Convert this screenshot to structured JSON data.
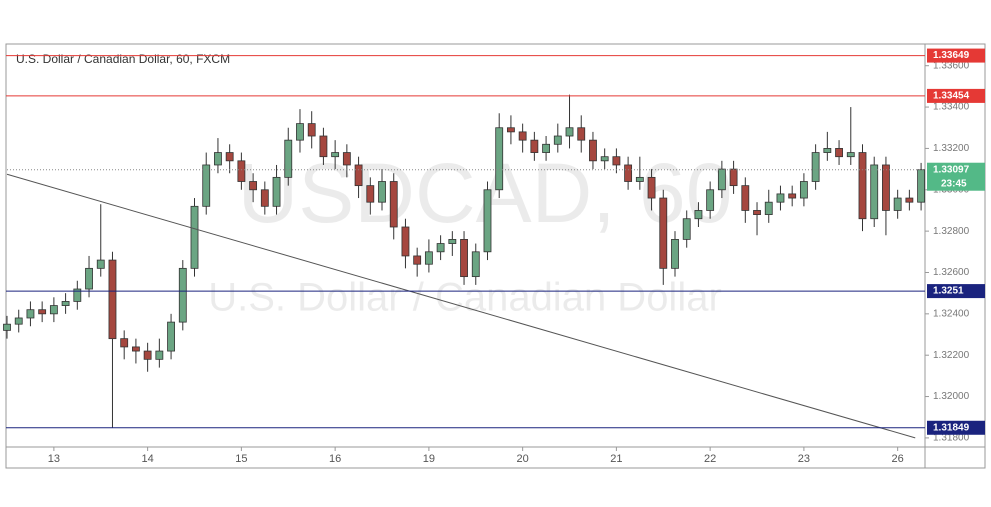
{
  "chart_data": {
    "type": "candlestick",
    "title": "U.S. Dollar / Canadian Dollar, 60, FXCM",
    "watermark": "USDCAD, 60",
    "watermark_subtitle": "U.S. Dollar / Canadian Dollar",
    "up_color": "#6ba583",
    "down_color": "#a5473f",
    "x": [
      0,
      3,
      6,
      9,
      12,
      15,
      18,
      21,
      24,
      27,
      30,
      33,
      36,
      39,
      42,
      45,
      48,
      51,
      54,
      57,
      60,
      63,
      66,
      69,
      72,
      75,
      78,
      81,
      84,
      87,
      90,
      93,
      96,
      99,
      102,
      105,
      108,
      111,
      114,
      117,
      120,
      123,
      126,
      129,
      132,
      135,
      138,
      141,
      144,
      147,
      150,
      153,
      156,
      159,
      162,
      165,
      168,
      171,
      174,
      177,
      180,
      183,
      186,
      189,
      192,
      195,
      198,
      201,
      204,
      207,
      210,
      213,
      216,
      219,
      222,
      225,
      228,
      231,
      234
    ],
    "open": [
      1.3232,
      1.3235,
      1.3238,
      1.3242,
      1.324,
      1.3244,
      1.3246,
      1.3252,
      1.3262,
      1.3266,
      1.3228,
      1.3224,
      1.3222,
      1.3218,
      1.3222,
      1.3236,
      1.3262,
      1.3292,
      1.3312,
      1.3318,
      1.3314,
      1.3304,
      1.33,
      1.3292,
      1.3306,
      1.3324,
      1.3332,
      1.3326,
      1.3316,
      1.3318,
      1.3312,
      1.3302,
      1.3294,
      1.3304,
      1.3282,
      1.3268,
      1.3264,
      1.327,
      1.3274,
      1.3276,
      1.3258,
      1.327,
      1.33,
      1.333,
      1.3328,
      1.3324,
      1.3318,
      1.3322,
      1.3326,
      1.333,
      1.3324,
      1.3314,
      1.3316,
      1.3312,
      1.3304,
      1.3306,
      1.3296,
      1.3262,
      1.3276,
      1.3286,
      1.329,
      1.33,
      1.331,
      1.3302,
      1.329,
      1.3288,
      1.3294,
      1.3298,
      1.3296,
      1.3304,
      1.3318,
      1.332,
      1.3316,
      1.3318,
      1.3286,
      1.3312,
      1.329,
      1.3296,
      1.3294
    ],
    "high": [
      1.3239,
      1.3242,
      1.3246,
      1.3246,
      1.3248,
      1.325,
      1.3256,
      1.3268,
      1.3293,
      1.327,
      1.3232,
      1.3228,
      1.3226,
      1.3228,
      1.324,
      1.3266,
      1.3296,
      1.3318,
      1.3325,
      1.3322,
      1.3318,
      1.3308,
      1.3304,
      1.3312,
      1.333,
      1.3339,
      1.3338,
      1.333,
      1.3324,
      1.3322,
      1.3316,
      1.3306,
      1.331,
      1.3308,
      1.3286,
      1.3272,
      1.3276,
      1.3278,
      1.328,
      1.328,
      1.3274,
      1.3304,
      1.3337,
      1.3336,
      1.3332,
      1.3328,
      1.3326,
      1.3332,
      1.3346,
      1.3336,
      1.3328,
      1.332,
      1.332,
      1.3316,
      1.3316,
      1.331,
      1.33,
      1.328,
      1.329,
      1.3294,
      1.3304,
      1.3314,
      1.3314,
      1.3306,
      1.3294,
      1.33,
      1.3302,
      1.3302,
      1.3308,
      1.3322,
      1.3328,
      1.3324,
      1.334,
      1.3322,
      1.3316,
      1.3316,
      1.33,
      1.33,
      1.3313
    ],
    "low": [
      1.3228,
      1.3231,
      1.3234,
      1.3236,
      1.3236,
      1.324,
      1.3242,
      1.3248,
      1.3258,
      1.3185,
      1.3218,
      1.3216,
      1.3212,
      1.3214,
      1.3218,
      1.3232,
      1.3258,
      1.3288,
      1.3308,
      1.3308,
      1.33,
      1.3294,
      1.3288,
      1.3288,
      1.3302,
      1.3318,
      1.332,
      1.3312,
      1.331,
      1.3306,
      1.3296,
      1.3288,
      1.329,
      1.3276,
      1.3262,
      1.3258,
      1.326,
      1.3266,
      1.3268,
      1.3254,
      1.3254,
      1.3266,
      1.3296,
      1.3322,
      1.3318,
      1.3314,
      1.3314,
      1.3318,
      1.332,
      1.3318,
      1.331,
      1.331,
      1.3308,
      1.33,
      1.33,
      1.329,
      1.3254,
      1.3258,
      1.3272,
      1.3282,
      1.3286,
      1.3296,
      1.3298,
      1.3284,
      1.3278,
      1.3284,
      1.329,
      1.3292,
      1.3292,
      1.33,
      1.3314,
      1.3312,
      1.3312,
      1.328,
      1.3282,
      1.3278,
      1.3286,
      1.329,
      1.329
    ],
    "close": [
      1.3235,
      1.3238,
      1.3242,
      1.324,
      1.3244,
      1.3246,
      1.3252,
      1.3262,
      1.3266,
      1.3228,
      1.3224,
      1.3222,
      1.3218,
      1.3222,
      1.3236,
      1.3262,
      1.3292,
      1.3312,
      1.3318,
      1.3314,
      1.3304,
      1.33,
      1.3292,
      1.3306,
      1.3324,
      1.3332,
      1.3326,
      1.3316,
      1.3318,
      1.3312,
      1.3302,
      1.3294,
      1.3304,
      1.3282,
      1.3268,
      1.3264,
      1.327,
      1.3274,
      1.3276,
      1.3258,
      1.327,
      1.33,
      1.333,
      1.3328,
      1.3324,
      1.3318,
      1.3322,
      1.3326,
      1.333,
      1.3324,
      1.3314,
      1.3316,
      1.3312,
      1.3304,
      1.3306,
      1.3296,
      1.3262,
      1.3276,
      1.3286,
      1.329,
      1.33,
      1.331,
      1.3302,
      1.329,
      1.3288,
      1.3294,
      1.3298,
      1.3296,
      1.3304,
      1.3318,
      1.332,
      1.3316,
      1.3318,
      1.3286,
      1.3312,
      1.329,
      1.3296,
      1.3294,
      1.33097
    ],
    "xlim": [
      0,
      235
    ],
    "xticks": [
      {
        "value": 12,
        "label": "13"
      },
      {
        "value": 36,
        "label": "14"
      },
      {
        "value": 60,
        "label": "15"
      },
      {
        "value": 84,
        "label": "16"
      },
      {
        "value": 108,
        "label": "19"
      },
      {
        "value": 132,
        "label": "20"
      },
      {
        "value": 156,
        "label": "21"
      },
      {
        "value": 180,
        "label": "22"
      },
      {
        "value": 204,
        "label": "23"
      },
      {
        "value": 228,
        "label": "26"
      }
    ],
    "ylim": [
      1.31756,
      1.33705
    ],
    "yticks": [
      {
        "value": 1.318,
        "label": "1.31800"
      },
      {
        "value": 1.32,
        "label": "1.32000"
      },
      {
        "value": 1.322,
        "label": "1.32200"
      },
      {
        "value": 1.324,
        "label": "1.32400"
      },
      {
        "value": 1.326,
        "label": "1.32600"
      },
      {
        "value": 1.328,
        "label": "1.32800"
      },
      {
        "value": 1.33,
        "label": "1.33000"
      },
      {
        "value": 1.332,
        "label": "1.33200"
      },
      {
        "value": 1.334,
        "label": "1.33400"
      },
      {
        "value": 1.336,
        "label": "1.33600"
      }
    ],
    "levels": [
      {
        "value": 1.33649,
        "color": "#e53935"
      },
      {
        "value": 1.33454,
        "color": "#e53935"
      },
      {
        "value": 1.3251,
        "color": "#1a237e"
      },
      {
        "value": 1.31849,
        "color": "#1a237e"
      }
    ],
    "current_price": {
      "value": 1.33097,
      "color": "#53b987",
      "countdown": "23:45"
    },
    "trend_line": {
      "x": [
        0,
        232.5
      ],
      "y": [
        1.33075,
        1.318
      ],
      "color": "#555555"
    }
  }
}
